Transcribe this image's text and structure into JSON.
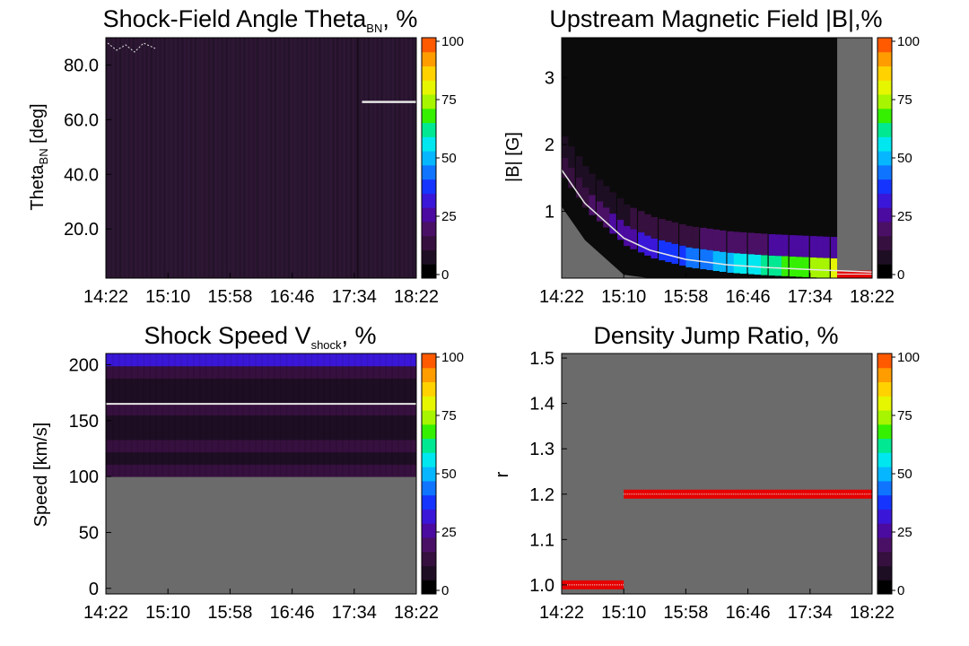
{
  "colorbar_colors": [
    "#000000",
    "#1e0e24",
    "#36103e",
    "#4a1066",
    "#4b0aa0",
    "#3a17d8",
    "#1535ff",
    "#0f74ff",
    "#06b7ff",
    "#00e7ef",
    "#00e892",
    "#35f000",
    "#a7f500",
    "#e6f500",
    "#ffd200",
    "#ff9c00",
    "#ff5a00"
  ],
  "panel_background": "#6b6b6b",
  "colors": {
    "median_line": "#e6e6e6",
    "red_band": "#e60000",
    "purple_field": "#2d1734",
    "dark_field": "#0b0b0b"
  },
  "charts": [
    {
      "title": {
        "main": "Shock-Field Angle Theta",
        "sub": "BN",
        "suffix": ", %"
      },
      "ylabel": {
        "main": "Theta",
        "sub": "BN",
        "suffix": " [deg]"
      },
      "colorbar_ticks": [
        "100",
        "75",
        "50",
        "25",
        "0"
      ]
    },
    {
      "title": {
        "main": "Upstream Magnetic Field |B|,%",
        "sub": "",
        "suffix": ""
      },
      "ylabel": {
        "main": "|B| [G]",
        "sub": "",
        "suffix": ""
      },
      "colorbar_ticks": [
        "100",
        "75",
        "50",
        "25",
        "0"
      ]
    },
    {
      "title": {
        "main": "Shock Speed V",
        "sub": "shock",
        "suffix": ", %"
      },
      "ylabel": {
        "main": "Speed [km/s]",
        "sub": "",
        "suffix": ""
      },
      "colorbar_ticks": [
        "100",
        "75",
        "50",
        "25",
        "0"
      ]
    },
    {
      "title": {
        "main": "Density Jump Ratio, %",
        "sub": "",
        "suffix": ""
      },
      "ylabel": {
        "main": "r",
        "sub": "",
        "suffix": ""
      },
      "colorbar_ticks": [
        "100",
        "75",
        "50",
        "25",
        "0"
      ]
    }
  ],
  "chart_data": [
    {
      "type": "heatmap",
      "title": "Shock-Field Angle ThetaBN, %",
      "ylabel": "ThetaBN [deg]",
      "x_ticks": [
        "14:22",
        "15:10",
        "15:58",
        "16:46",
        "17:34",
        "18:22"
      ],
      "y_ticks": [
        "20.0",
        "40.0",
        "60.0",
        "80.0"
      ],
      "y_tick_values": [
        20,
        40,
        60,
        80
      ],
      "ylim": [
        2,
        90
      ],
      "colorbar": {
        "min": 0,
        "max": 100,
        "ticks": [
          0,
          25,
          50,
          75,
          100
        ]
      },
      "typical_percent": 10,
      "median_line": {
        "x_start": "17:40",
        "x_end": "18:22",
        "y": 66.5
      }
    },
    {
      "type": "heatmap",
      "title": "Upstream Magnetic Field |B|,%",
      "ylabel": "|B| [G]",
      "x_ticks": [
        "14:22",
        "15:10",
        "15:58",
        "16:46",
        "17:34",
        "18:22"
      ],
      "y_ticks": [
        "1",
        "2",
        "3"
      ],
      "y_tick_values": [
        1,
        2,
        3
      ],
      "ylim": [
        0,
        3.6
      ],
      "colorbar": {
        "min": 0,
        "max": 100,
        "ticks": [
          0,
          25,
          50,
          75,
          100
        ]
      },
      "median_curve": {
        "x": [
          "14:22",
          "14:40",
          "15:10",
          "15:30",
          "15:58",
          "16:30",
          "17:00",
          "17:34",
          "18:22"
        ],
        "y": [
          1.62,
          1.12,
          0.6,
          0.42,
          0.28,
          0.2,
          0.16,
          0.13,
          0.09
        ]
      },
      "no_data_after": "17:55",
      "red_band": {
        "x_start": "17:55",
        "x_end": "18:22",
        "y": 0.06
      }
    },
    {
      "type": "heatmap",
      "title": "Shock Speed Vshock, %",
      "ylabel": "Speed [km/s]",
      "x_ticks": [
        "14:22",
        "15:10",
        "15:58",
        "16:46",
        "17:34",
        "18:22"
      ],
      "y_ticks": [
        "0",
        "50",
        "100",
        "150",
        "200"
      ],
      "y_tick_values": [
        0,
        50,
        100,
        150,
        200
      ],
      "ylim": [
        -5,
        210
      ],
      "colorbar": {
        "min": 0,
        "max": 100,
        "ticks": [
          0,
          25,
          50,
          75,
          100
        ]
      },
      "filled_range": [
        100,
        210
      ],
      "median_line": {
        "x_start": "14:22",
        "x_end": "18:22",
        "y": 165
      }
    },
    {
      "type": "heatmap",
      "title": "Density Jump Ratio, %",
      "ylabel": "r",
      "x_ticks": [
        "14:22",
        "15:10",
        "15:58",
        "16:46",
        "17:34",
        "18:22"
      ],
      "y_ticks": [
        "1.0",
        "1.1",
        "1.2",
        "1.3",
        "1.4",
        "1.5"
      ],
      "y_tick_values": [
        1.0,
        1.1,
        1.2,
        1.3,
        1.4,
        1.5
      ],
      "ylim": [
        0.98,
        1.51
      ],
      "colorbar": {
        "min": 0,
        "max": 100,
        "ticks": [
          0,
          25,
          50,
          75,
          100
        ]
      },
      "bands": [
        {
          "x_start": "14:22",
          "x_end": "15:10",
          "y": 1.0,
          "percent": 100
        },
        {
          "x_start": "15:10",
          "x_end": "18:22",
          "y": 1.2,
          "percent": 100
        }
      ]
    }
  ]
}
